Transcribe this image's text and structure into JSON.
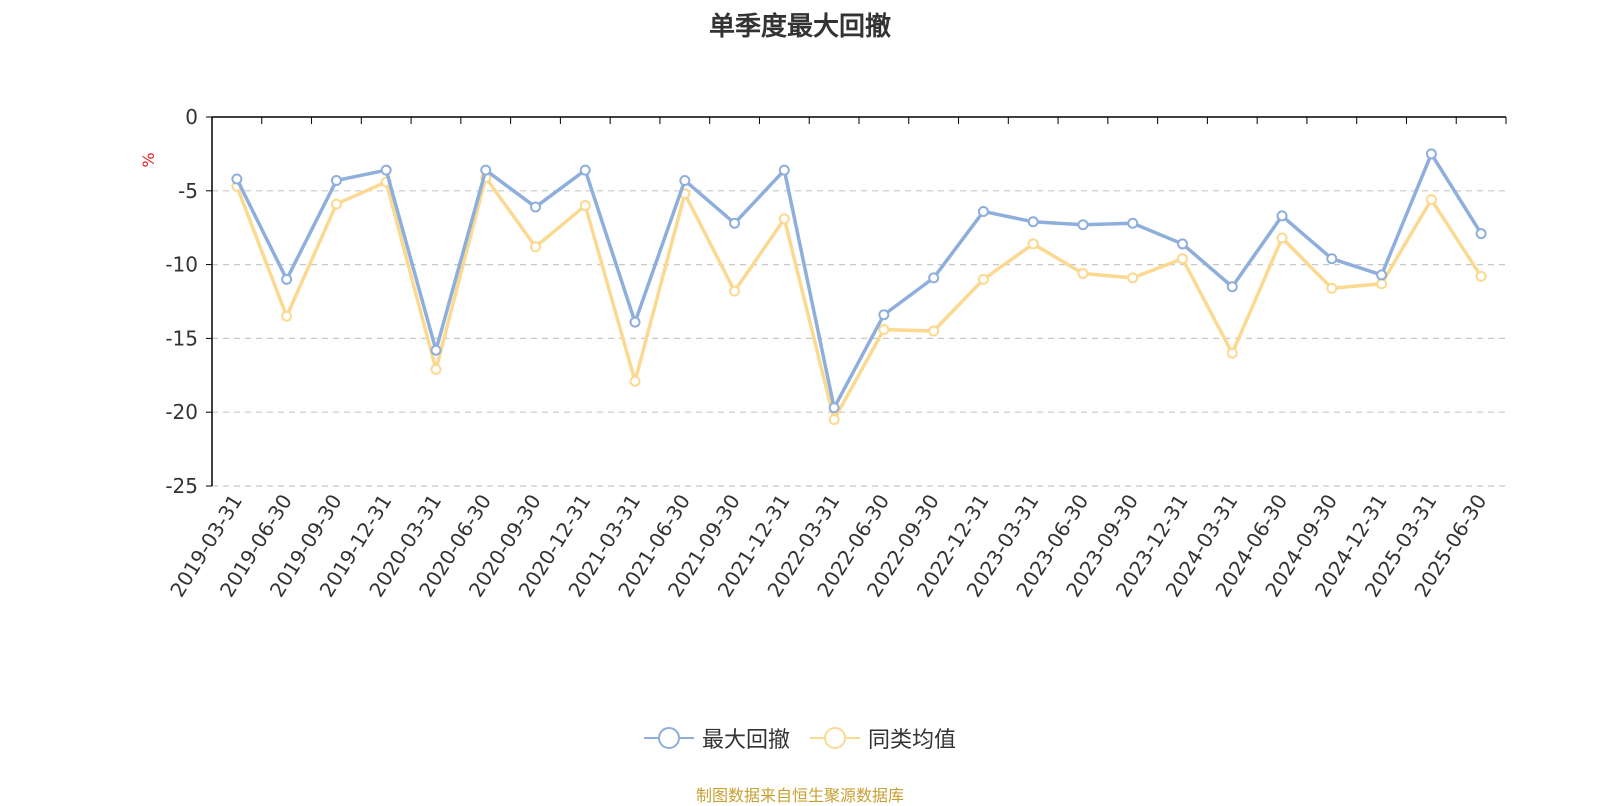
{
  "colors": {
    "series1": "#8eaedb",
    "series2": "#fbd990",
    "axis": "#000000",
    "grid": "#c8c8c8",
    "text": "#333333",
    "unit": "#e02020",
    "source": "#c8a032"
  },
  "chart_data": {
    "type": "line",
    "title": "单季度最大回撤",
    "ylabel": "%",
    "xlabel": "",
    "ylim": [
      -25,
      0
    ],
    "yticks": [
      0,
      -5,
      -10,
      -15,
      -20,
      -25
    ],
    "grid": true,
    "legend_position": "bottom-center",
    "categories": [
      "2019-03-31",
      "2019-06-30",
      "2019-09-30",
      "2019-12-31",
      "2020-03-31",
      "2020-06-30",
      "2020-09-30",
      "2020-12-31",
      "2021-03-31",
      "2021-06-30",
      "2021-09-30",
      "2021-12-31",
      "2022-03-31",
      "2022-06-30",
      "2022-09-30",
      "2022-12-31",
      "2023-03-31",
      "2023-06-30",
      "2023-09-30",
      "2023-12-31",
      "2024-03-31",
      "2024-06-30",
      "2024-09-30",
      "2024-12-31",
      "2025-03-31",
      "2025-06-30"
    ],
    "series": [
      {
        "name": "最大回撤",
        "values": [
          -4.2,
          -11.0,
          -4.3,
          -3.6,
          -15.8,
          -3.6,
          -6.1,
          -3.6,
          -13.9,
          -4.3,
          -7.2,
          -3.6,
          -19.7,
          -13.4,
          -10.9,
          -6.4,
          -7.1,
          -7.3,
          -7.2,
          -8.6,
          -11.5,
          -6.7,
          -9.6,
          -10.7,
          -2.5,
          -7.9
        ]
      },
      {
        "name": "同类均值",
        "values": [
          -4.7,
          -13.5,
          -5.9,
          -4.4,
          -17.1,
          -4.1,
          -8.8,
          -6.0,
          -17.9,
          -5.2,
          -11.8,
          -6.9,
          -20.5,
          -14.4,
          -14.5,
          -11.0,
          -8.6,
          -10.6,
          -10.9,
          -9.6,
          -16.0,
          -8.2,
          -11.6,
          -11.3,
          -5.6,
          -10.8
        ]
      }
    ]
  },
  "source_text": "制图数据来自恒生聚源数据库"
}
